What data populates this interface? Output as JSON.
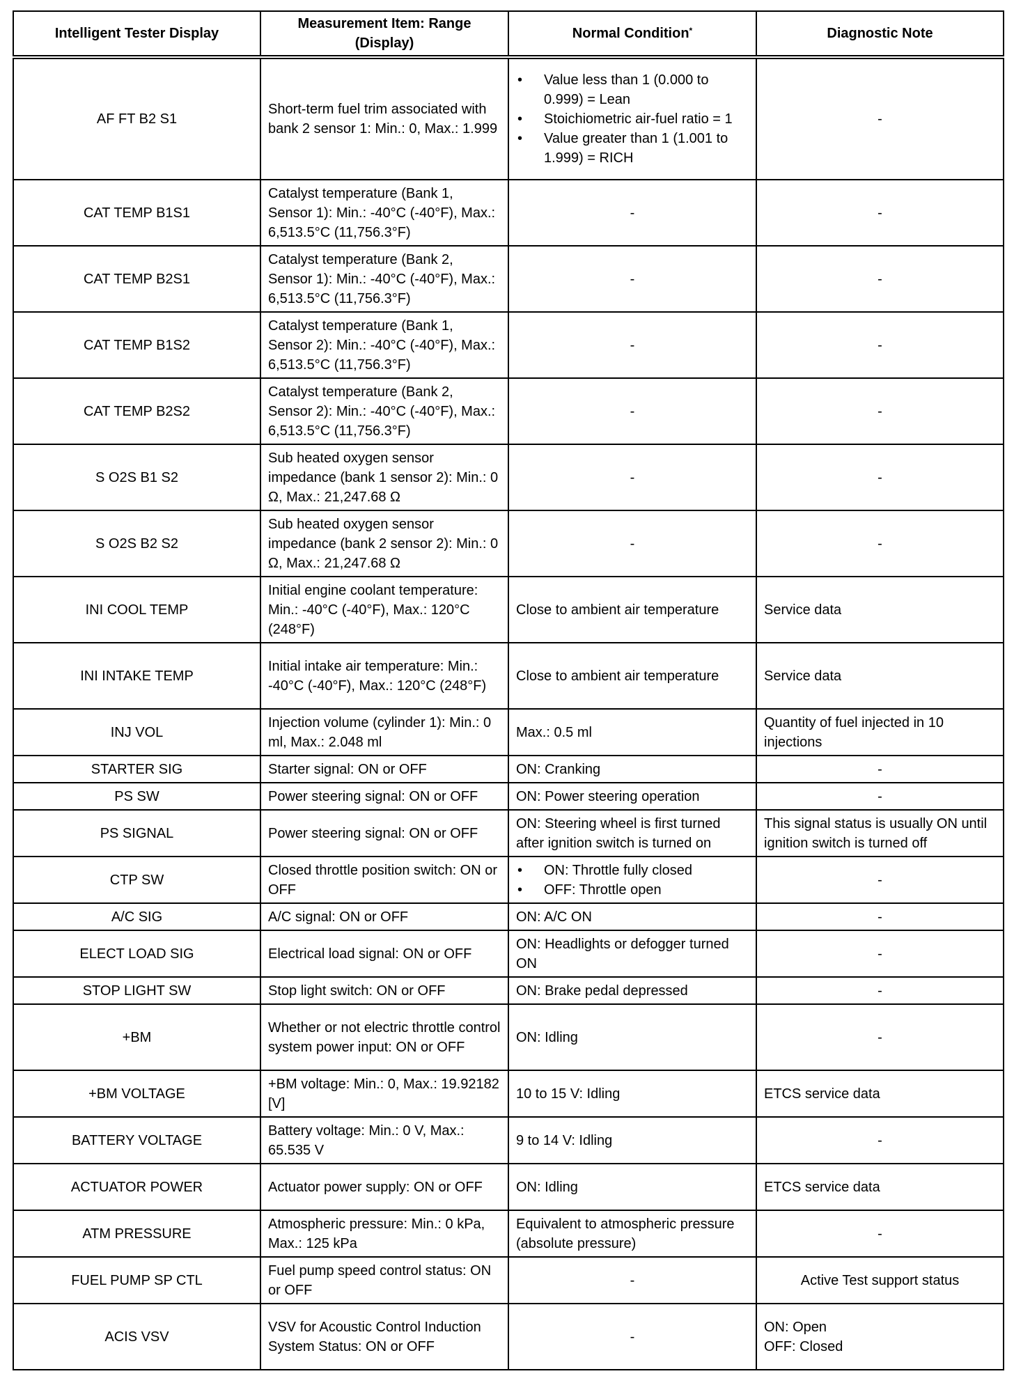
{
  "table": {
    "headers": [
      "Intelligent Tester Display",
      "Measurement Item: Range (Display)",
      "Normal Condition",
      "Diagnostic Note"
    ],
    "header_footnote_mark": "*",
    "rows": [
      {
        "h": 176,
        "cells": [
          "AF FT B2 S1",
          "Short-term fuel trim associated with bank 2 sensor 1: Min.: 0, Max.: 1.999",
          {
            "bullets": [
              "Value less than 1 (0.000 to 0.999) = Lean",
              "Stoichiometric air-fuel ratio = 1",
              "Value greater than 1 (1.001 to 1.999) = RICH"
            ]
          },
          "-"
        ]
      },
      {
        "h": 95,
        "cells": [
          "CAT TEMP B1S1",
          "Catalyst temperature (Bank 1, Sensor 1): Min.: -40°C (-40°F), Max.: 6,513.5°C (11,756.3°F)",
          "-",
          "-"
        ]
      },
      {
        "h": 95,
        "cells": [
          "CAT TEMP B2S1",
          "Catalyst temperature (Bank 2, Sensor 1): Min.: -40°C (-40°F), Max.: 6,513.5°C (11,756.3°F)",
          "-",
          "-"
        ]
      },
      {
        "h": 95,
        "cells": [
          "CAT TEMP B1S2",
          "Catalyst temperature (Bank 1, Sensor 2): Min.: -40°C (-40°F), Max.: 6,513.5°C (11,756.3°F)",
          "-",
          "-"
        ]
      },
      {
        "h": 95,
        "cells": [
          "CAT TEMP B2S2",
          "Catalyst temperature (Bank 2, Sensor 2): Min.: -40°C (-40°F), Max.: 6,513.5°C (11,756.3°F)",
          "-",
          "-"
        ]
      },
      {
        "h": 95,
        "cells": [
          "S O2S B1 S2",
          "Sub heated oxygen sensor impedance (bank 1 sensor 2): Min.: 0 Ω, Max.: 21,247.68 Ω",
          "-",
          "-"
        ]
      },
      {
        "h": 95,
        "cells": [
          "S O2S B2 S2",
          "Sub heated oxygen sensor impedance (bank 2 sensor 2): Min.: 0 Ω, Max.: 21,247.68 Ω",
          "-",
          "-"
        ]
      },
      {
        "h": 95,
        "cells": [
          "INI COOL TEMP",
          "Initial engine coolant temperature: Min.: -40°C (-40°F), Max.: 120°C (248°F)",
          "Close to ambient air temperature",
          "Service data"
        ]
      },
      {
        "h": 95,
        "cells": [
          "INI INTAKE TEMP",
          "Initial intake air temperature: Min.: -40°C (-40°F), Max.: 120°C (248°F)",
          "Close to ambient air temperature",
          "Service data"
        ]
      },
      {
        "h": 67,
        "cells": [
          "INJ VOL",
          "Injection volume (cylinder 1): Min.: 0 ml, Max.: 2.048 ml",
          "Max.: 0.5 ml",
          "Quantity of fuel injected in 10 injections"
        ]
      },
      {
        "h": 39,
        "cells": [
          "STARTER SIG",
          "Starter signal: ON or OFF",
          "ON: Cranking",
          "-"
        ]
      },
      {
        "h": 39,
        "cells": [
          "PS SW",
          "Power steering signal: ON or OFF",
          "ON: Power steering operation",
          "-"
        ]
      },
      {
        "h": 67,
        "cells": [
          "PS SIGNAL",
          "Power steering signal: ON or OFF",
          "ON: Steering wheel is first turned after ignition switch is turned on",
          "This signal status is usually ON until ignition switch is turned off"
        ]
      },
      {
        "h": 67,
        "cells": [
          "CTP SW",
          "Closed throttle position switch: ON or OFF",
          {
            "bullets": [
              "ON: Throttle fully closed",
              "OFF: Throttle open"
            ]
          },
          "-"
        ]
      },
      {
        "h": 39,
        "cells": [
          "A/C SIG",
          "A/C signal: ON or OFF",
          "ON: A/C ON",
          "-"
        ]
      },
      {
        "h": 67,
        "cells": [
          "ELECT LOAD SIG",
          "Electrical load signal: ON or OFF",
          "ON: Headlights or defogger turned ON",
          "-"
        ]
      },
      {
        "h": 39,
        "cells": [
          "STOP LIGHT SW",
          "Stop light switch: ON or OFF",
          "ON: Brake pedal depressed",
          "-"
        ]
      },
      {
        "h": 95,
        "cells": [
          "+BM",
          "Whether or not electric throttle control system power input: ON or OFF",
          "ON: Idling",
          "-"
        ]
      },
      {
        "h": 67,
        "cells": [
          "+BM VOLTAGE",
          "+BM voltage: Min.: 0, Max.: 19.92182 [V]",
          "10 to 15 V: Idling",
          "ETCS service data"
        ]
      },
      {
        "h": 67,
        "cells": [
          "BATTERY VOLTAGE",
          "Battery voltage: Min.: 0 V, Max.: 65.535 V",
          "9 to 14 V: Idling",
          "-"
        ]
      },
      {
        "h": 67,
        "cells": [
          "ACTUATOR POWER",
          "Actuator power supply: ON or OFF",
          "ON: Idling",
          "ETCS service data"
        ]
      },
      {
        "h": 67,
        "cells": [
          "ATM PRESSURE",
          "Atmospheric pressure: Min.: 0 kPa, Max.: 125 kPa",
          "Equivalent to atmospheric pressure (absolute pressure)",
          "-"
        ]
      },
      {
        "h": 67,
        "cells": [
          "FUEL PUMP SP CTL",
          "Fuel pump speed control status: ON or OFF",
          "-",
          "Active Test support status"
        ]
      },
      {
        "h": 95,
        "cells": [
          "ACIS VSV",
          "VSV for Acoustic Control Induction System Status: ON or OFF",
          "-",
          {
            "lines": [
              "ON: Open",
              "OFF: Closed"
            ]
          }
        ]
      }
    ]
  }
}
